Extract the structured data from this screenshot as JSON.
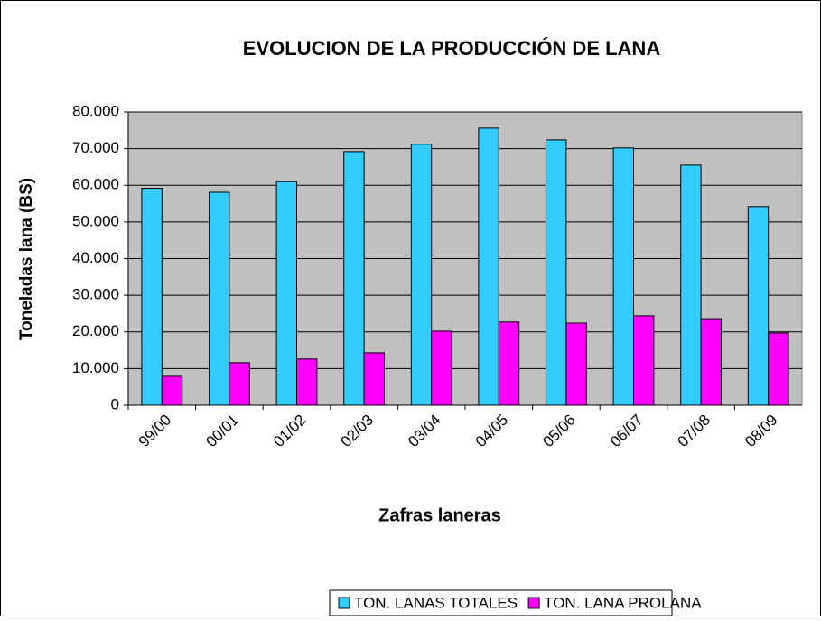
{
  "chart_data": {
    "type": "bar",
    "title": "EVOLUCION DE LA PRODUCCIÓN DE LANA",
    "x_label": "Zafras laneras",
    "y_label": "Toneladas lana (BS)",
    "categories": [
      "99/00",
      "00/01",
      "01/02",
      "02/03",
      "03/04",
      "04/05",
      "05/06",
      "06/07",
      "07/08",
      "08/09"
    ],
    "series": [
      {
        "name": "TON. LANAS TOTALES",
        "color": "#33ccff",
        "values": [
          59200,
          58100,
          61000,
          69200,
          71200,
          75600,
          72400,
          70200,
          65500,
          54200
        ]
      },
      {
        "name": "TON. LANA PROLANA",
        "color": "#ff00ff",
        "values": [
          7900,
          11600,
          12600,
          14300,
          20200,
          22700,
          22400,
          24400,
          23600,
          19700
        ]
      }
    ],
    "ylim": [
      0,
      80000
    ],
    "yticks": [
      0,
      {
        "value": 10000,
        "label": "10.000"
      },
      {
        "value": 20000,
        "label": "20.000"
      },
      {
        "value": 30000,
        "label": "30.000"
      },
      {
        "value": 40000,
        "label": "40.000"
      },
      {
        "value": 50000,
        "label": "50.000"
      },
      {
        "value": 60000,
        "label": "60.000"
      },
      {
        "value": 70000,
        "label": "70.000"
      },
      {
        "value": 80000,
        "label": "80.000"
      }
    ],
    "grid": true,
    "legend": "bottom"
  }
}
